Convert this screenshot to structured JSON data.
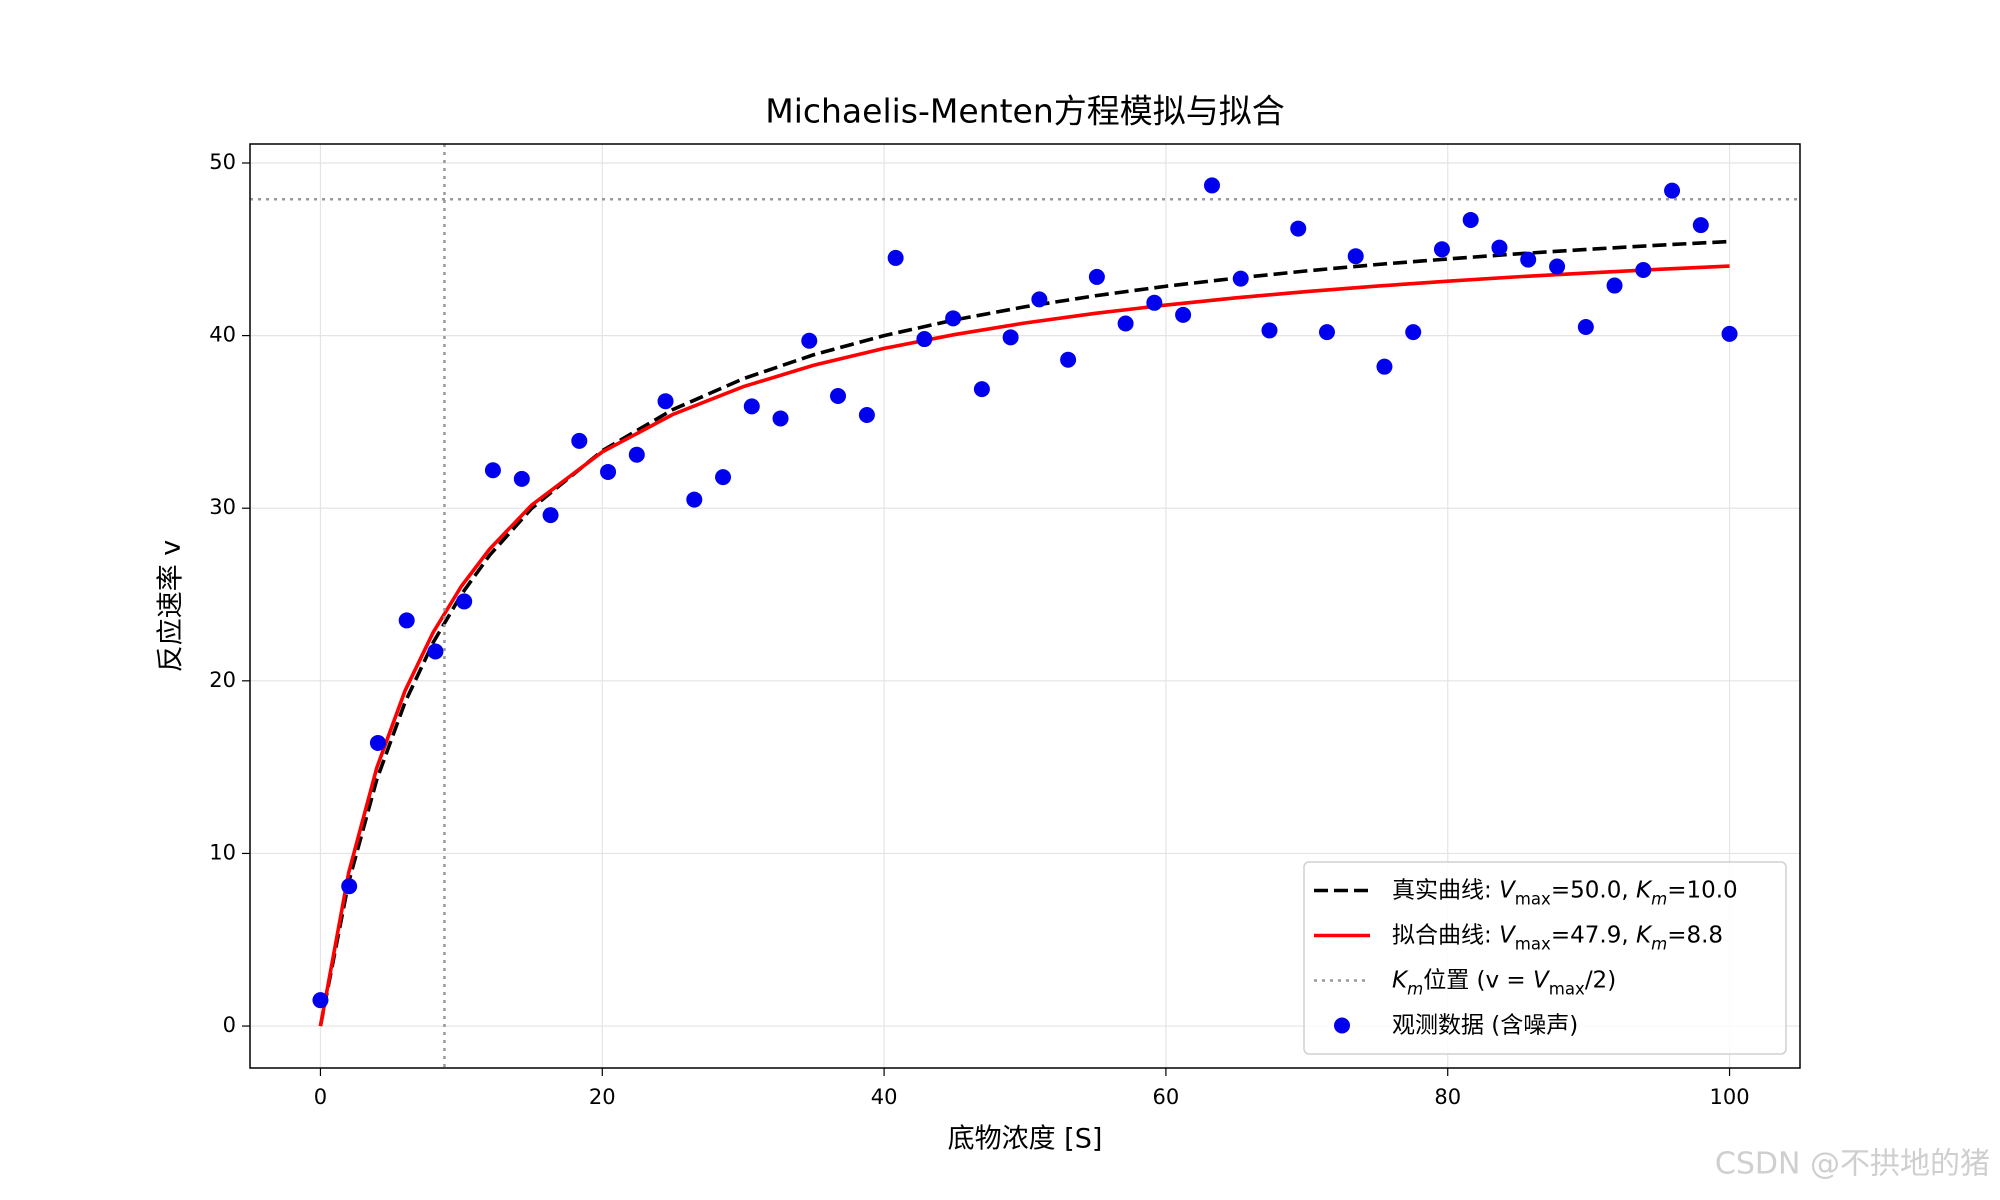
{
  "chart_data": {
    "type": "line",
    "title": "Michaelis-Menten方程模拟与拟合",
    "xlabel": "底物浓度 [S]",
    "ylabel": "反应速率 v",
    "xlim": [
      -5,
      105
    ],
    "ylim": [
      -2.43,
      51.1
    ],
    "xticks": [
      0,
      20,
      40,
      60,
      80,
      100
    ],
    "yticks": [
      0,
      10,
      20,
      30,
      40,
      50
    ],
    "grid": true,
    "legend": "lower right",
    "series": [
      {
        "name": "真实曲线: Vmax=50.0, Km=10.0",
        "type": "line",
        "style": "dashed",
        "color": "#000000",
        "x": [
          0,
          2,
          4,
          6,
          8,
          10,
          12,
          15,
          20,
          25,
          30,
          35,
          40,
          45,
          50,
          55,
          60,
          65,
          70,
          75,
          80,
          85,
          90,
          95,
          100
        ],
        "values": [
          0,
          8.33,
          14.29,
          18.75,
          22.22,
          25,
          27.27,
          30,
          33.33,
          35.71,
          37.5,
          38.89,
          40,
          40.91,
          41.67,
          42.31,
          42.86,
          43.33,
          43.75,
          44.12,
          44.44,
          44.74,
          45,
          45.24,
          45.45
        ]
      },
      {
        "name": "拟合曲线: Vmax=47.9, Km=8.8",
        "type": "line",
        "style": "solid",
        "color": "#ff0000",
        "x": [
          0,
          2,
          4,
          6,
          8,
          10,
          12,
          15,
          20,
          25,
          30,
          35,
          40,
          45,
          50,
          55,
          60,
          65,
          70,
          75,
          80,
          85,
          90,
          95,
          100
        ],
        "values": [
          0,
          8.87,
          14.97,
          19.42,
          22.81,
          25.48,
          27.63,
          30.19,
          33.26,
          35.43,
          37.04,
          38.28,
          39.26,
          40.06,
          40.73,
          41.29,
          41.77,
          42.19,
          42.55,
          42.87,
          43.15,
          43.41,
          43.63,
          43.84,
          44.03
        ]
      },
      {
        "name": "Km位置 (v = Vmax/2)",
        "type": "reference",
        "style": "dotted",
        "color": "#999999",
        "x_line": 8.8,
        "y_line": 47.9
      },
      {
        "name": "观测数据 (含噪声)",
        "type": "scatter",
        "color": "#0000ee",
        "x": [
          0,
          2.04,
          4.08,
          6.12,
          8.16,
          10.2,
          12.24,
          14.29,
          16.33,
          18.37,
          20.41,
          22.45,
          24.49,
          26.53,
          28.57,
          30.61,
          32.65,
          34.69,
          36.73,
          38.78,
          40.82,
          42.86,
          44.9,
          46.94,
          48.98,
          51.02,
          53.06,
          55.1,
          57.14,
          59.18,
          61.22,
          63.27,
          65.31,
          67.35,
          69.39,
          71.43,
          73.47,
          75.51,
          77.55,
          79.59,
          81.63,
          83.67,
          85.71,
          87.76,
          89.8,
          91.84,
          93.88,
          95.92,
          97.96,
          100
        ],
        "values": [
          1.5,
          8.1,
          16.4,
          23.5,
          21.7,
          24.6,
          32.2,
          31.7,
          29.6,
          33.9,
          32.1,
          33.1,
          36.2,
          30.5,
          31.8,
          35.9,
          35.2,
          39.7,
          36.5,
          35.4,
          44.5,
          39.8,
          41.0,
          36.9,
          39.9,
          42.1,
          38.6,
          43.4,
          40.7,
          41.9,
          41.2,
          48.7,
          43.3,
          40.3,
          46.2,
          40.2,
          44.6,
          38.2,
          40.2,
          45.0,
          46.7,
          45.1,
          44.4,
          44.0,
          40.5,
          42.9,
          43.8,
          48.4,
          46.4,
          40.1
        ]
      }
    ],
    "watermark": "CSDN @不拱地的猪"
  }
}
